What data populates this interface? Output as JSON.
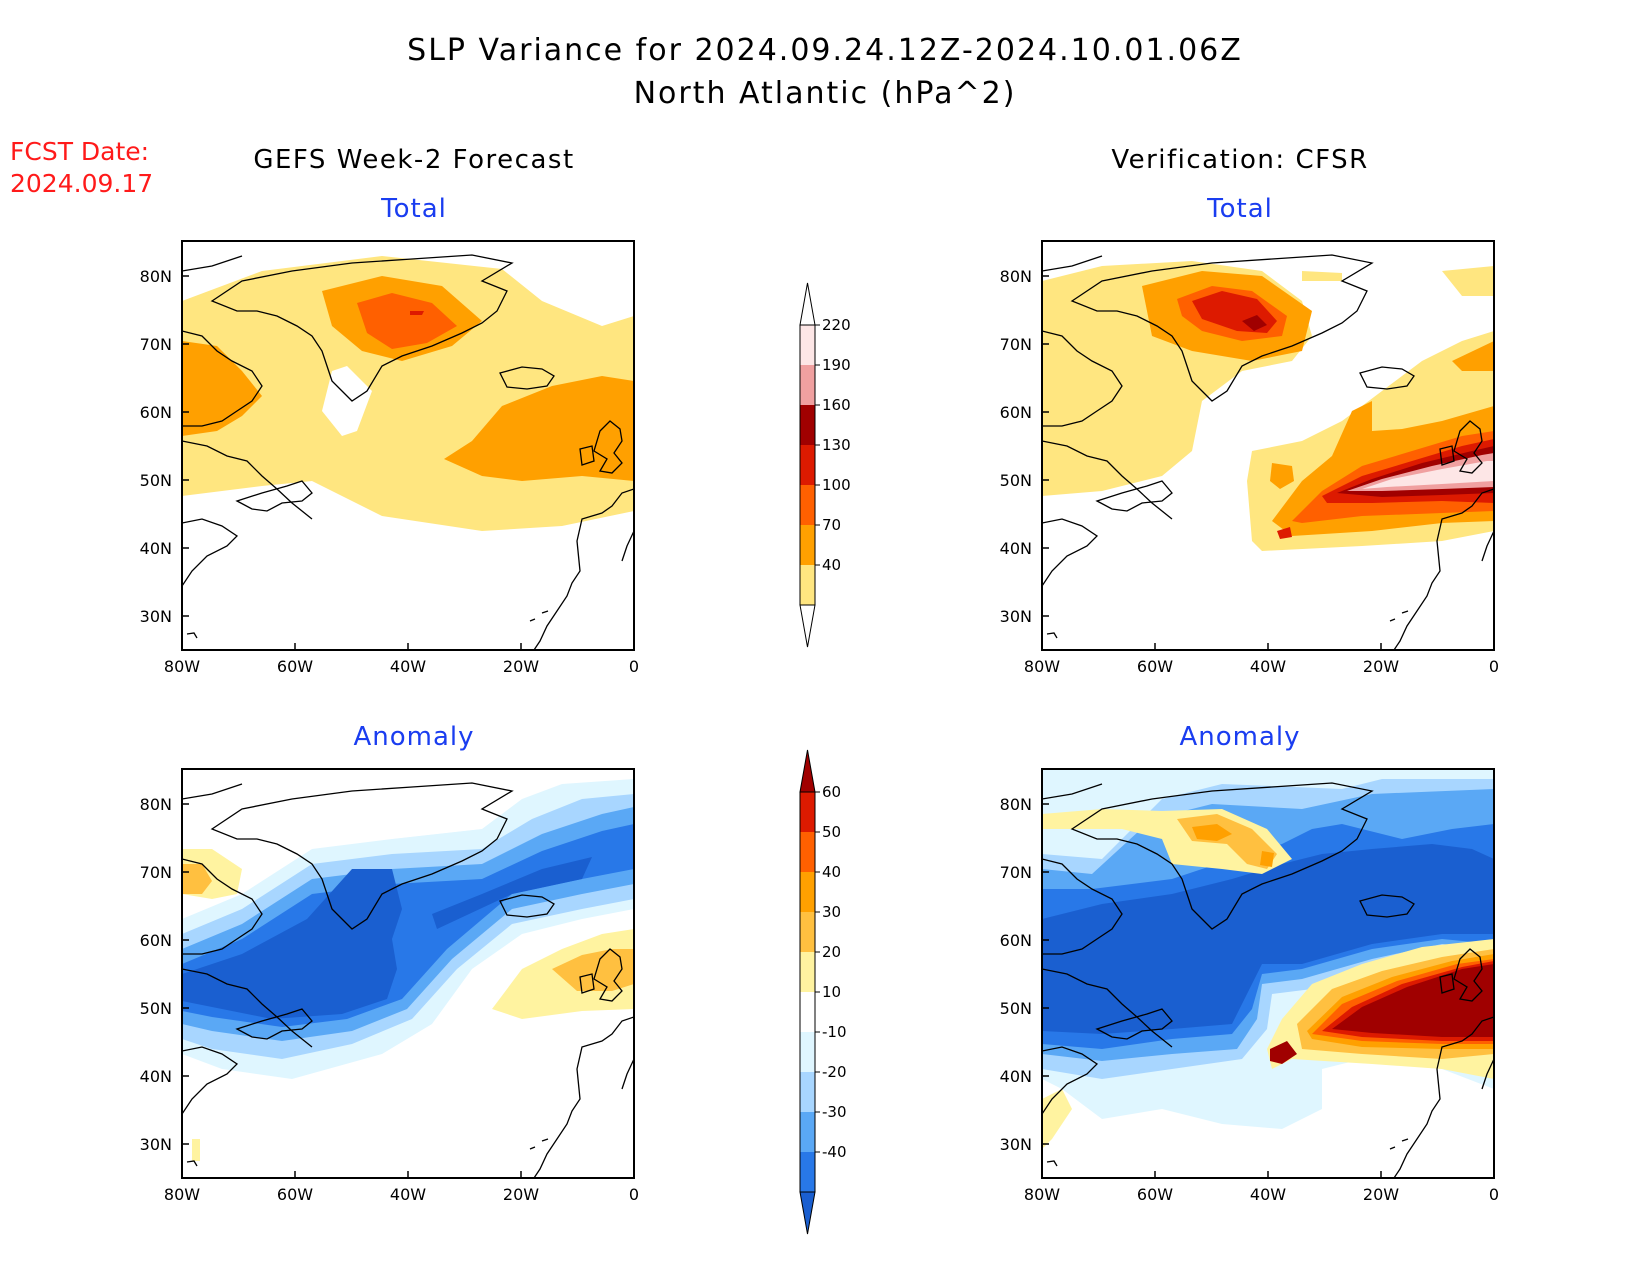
{
  "title": {
    "line1": "SLP Variance for 2024.09.24.12Z-2024.10.01.06Z",
    "line2": "North Atlantic (hPa^2)"
  },
  "forecast_date": {
    "label": "FCST Date:",
    "value": "2024.09.17"
  },
  "columns": {
    "left": "GEFS Week-2 Forecast",
    "right": "Verification: CFSR"
  },
  "rows": {
    "top": "Total",
    "bottom": "Anomaly"
  },
  "axes": {
    "lon_ticks": [
      "80W",
      "60W",
      "40W",
      "20W",
      "0"
    ],
    "lat_ticks": [
      "80N",
      "70N",
      "60N",
      "50N",
      "40N",
      "30N"
    ]
  },
  "colorbars": {
    "total": {
      "levels": [
        "220",
        "190",
        "160",
        "130",
        "100",
        "70",
        "40"
      ],
      "colors": [
        "#fde6e6",
        "#f0a0a0",
        "#a00000",
        "#dd1a00",
        "#ff6000",
        "#ffa000",
        "#ffe680"
      ]
    },
    "anomaly": {
      "levels": [
        "60",
        "50",
        "40",
        "30",
        "20",
        "10",
        "-10",
        "-20",
        "-30",
        "-40"
      ],
      "colors": [
        "#a00000",
        "#dd1a00",
        "#ff6000",
        "#ffa000",
        "#ffc040",
        "#fff3a0",
        "#ffffff",
        "#dff6ff",
        "#a8d6ff",
        "#5aa8f5",
        "#2878e8",
        "#1a5fd0"
      ]
    }
  },
  "map_colors": {
    "y40": "#ffe680",
    "o70": "#ffa000",
    "o100": "#ff6000",
    "r130": "#dd1a00",
    "r160": "#a00000",
    "p190": "#f0a0a0",
    "p220": "#fde6e6",
    "ay": "#fff3a0",
    "ao1": "#ffc040",
    "ao2": "#ffa000",
    "ar": "#a00000",
    "b1": "#dff6ff",
    "b2": "#a8d6ff",
    "b3": "#5aa8f5",
    "b4": "#2878e8",
    "b5": "#1a5fd0"
  }
}
